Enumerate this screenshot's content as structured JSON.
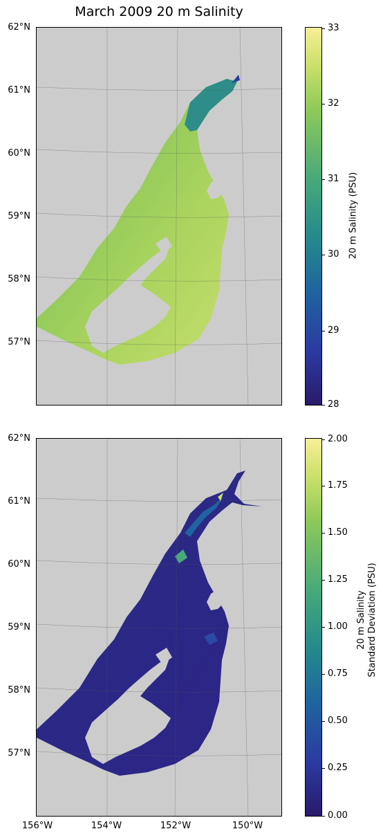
{
  "title": "March 2009 20 m Salinity",
  "latitude_labels": [
    "62°N",
    "61°N",
    "60°N",
    "59°N",
    "58°N",
    "57°N"
  ],
  "longitude_labels": [
    "156°W",
    "154°W",
    "152°W",
    "150°W"
  ],
  "panels": [
    {
      "name": "salinity",
      "colorbar": {
        "label": "20 m Salinity (PSU)",
        "ticks": [
          "33",
          "32",
          "31",
          "30",
          "29",
          "28"
        ],
        "range": [
          28,
          33
        ]
      }
    },
    {
      "name": "salinity-std",
      "colorbar": {
        "label_line1": "20 m Salinity",
        "label_line2": "Standard Deviation (PSU)",
        "ticks": [
          "2.00",
          "1.75",
          "1.50",
          "1.25",
          "1.00",
          "0.75",
          "0.50",
          "0.25",
          "0.00"
        ],
        "range": [
          0.0,
          2.0
        ]
      }
    }
  ],
  "colors": {
    "land": "#cccccc",
    "colormap_low": "#2a1a6b",
    "colormap_mid": "#268b8b",
    "colormap_high": "#f7ee99"
  }
}
